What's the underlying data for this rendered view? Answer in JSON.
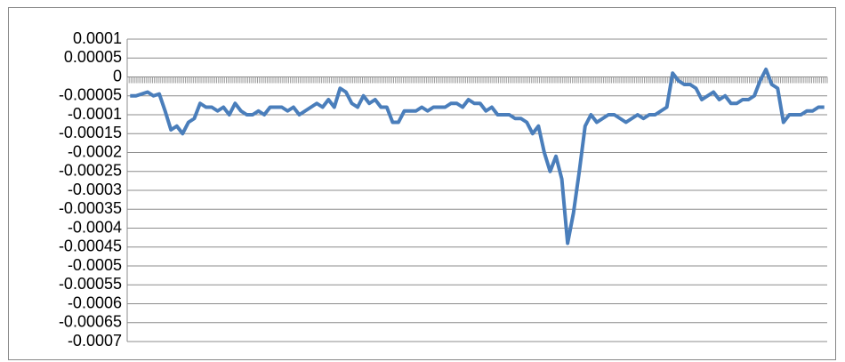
{
  "chart_data": {
    "type": "line",
    "color": "#4a7ebb",
    "grid": true,
    "categories": [
      null,
      null,
      null,
      null,
      null,
      null,
      null,
      null,
      null,
      null,
      null,
      null,
      null,
      null,
      null,
      null,
      null,
      null,
      null,
      null,
      null,
      null,
      null,
      null,
      null,
      null,
      null,
      null,
      null,
      null,
      null,
      null,
      null,
      null,
      null,
      null,
      null,
      null,
      null,
      null,
      null,
      null,
      null,
      null,
      null,
      null,
      null,
      null,
      null,
      null,
      null,
      null,
      null,
      null,
      null,
      null,
      null,
      null,
      null,
      null,
      null,
      null,
      null,
      null,
      null,
      null,
      null,
      null,
      null,
      null,
      null,
      null,
      null,
      null,
      null,
      null,
      null,
      null,
      null,
      null,
      null,
      null,
      null,
      null,
      null,
      null,
      null,
      null,
      null,
      null,
      null,
      null,
      null,
      null,
      null,
      null,
      null,
      null,
      null,
      null,
      null,
      null,
      null,
      null,
      null,
      null,
      null,
      null,
      null,
      null,
      null,
      null,
      null,
      null,
      null,
      null,
      null,
      null,
      null,
      null
    ],
    "values": [
      -5e-05,
      -5e-05,
      -4.5e-05,
      -4e-05,
      -5e-05,
      -4.5e-05,
      -9e-05,
      -0.00014,
      -0.00013,
      -0.00015,
      -0.00012,
      -0.00011,
      -7e-05,
      -8e-05,
      -8e-05,
      -9e-05,
      -8e-05,
      -0.0001,
      -7e-05,
      -9e-05,
      -0.0001,
      -0.0001,
      -9e-05,
      -0.0001,
      -8e-05,
      -8e-05,
      -8e-05,
      -9e-05,
      -8e-05,
      -0.0001,
      -9e-05,
      -8e-05,
      -7e-05,
      -8e-05,
      -6e-05,
      -8e-05,
      -3e-05,
      -4e-05,
      -7e-05,
      -8e-05,
      -5e-05,
      -7e-05,
      -6e-05,
      -8e-05,
      -8e-05,
      -0.00012,
      -0.00012,
      -9e-05,
      -9e-05,
      -9e-05,
      -8e-05,
      -9e-05,
      -8e-05,
      -8e-05,
      -8e-05,
      -7e-05,
      -7e-05,
      -8e-05,
      -6e-05,
      -7e-05,
      -7e-05,
      -9e-05,
      -8e-05,
      -0.0001,
      -0.0001,
      -0.0001,
      -0.00011,
      -0.00011,
      -0.00012,
      -0.00015,
      -0.00013,
      -0.0002,
      -0.00025,
      -0.00021,
      -0.00027,
      -0.00044,
      -0.00036,
      -0.00025,
      -0.00013,
      -0.0001,
      -0.00012,
      -0.00011,
      -0.0001,
      -0.0001,
      -0.00011,
      -0.00012,
      -0.00011,
      -0.0001,
      -0.00011,
      -0.0001,
      -0.0001,
      -9e-05,
      -8e-05,
      1e-05,
      -1e-05,
      -2e-05,
      -2e-05,
      -3e-05,
      -6e-05,
      -5e-05,
      -4e-05,
      -6e-05,
      -5e-05,
      -7e-05,
      -7e-05,
      -6e-05,
      -6e-05,
      -5e-05,
      -1e-05,
      2e-05,
      -2e-05,
      -3e-05,
      -0.00012,
      -0.0001,
      -0.0001,
      -0.0001,
      -9e-05,
      -9e-05,
      -8e-05,
      -8e-05
    ],
    "ylim": [
      -0.0007,
      0.0001
    ],
    "yticks": [
      0.0001,
      5e-05,
      0,
      -5e-05,
      -0.0001,
      -0.00015,
      -0.0002,
      -0.00025,
      -0.0003,
      -0.00035,
      -0.0004,
      -0.00045,
      -0.0005,
      -0.00055,
      -0.0006,
      -0.00065,
      -0.0007
    ]
  }
}
